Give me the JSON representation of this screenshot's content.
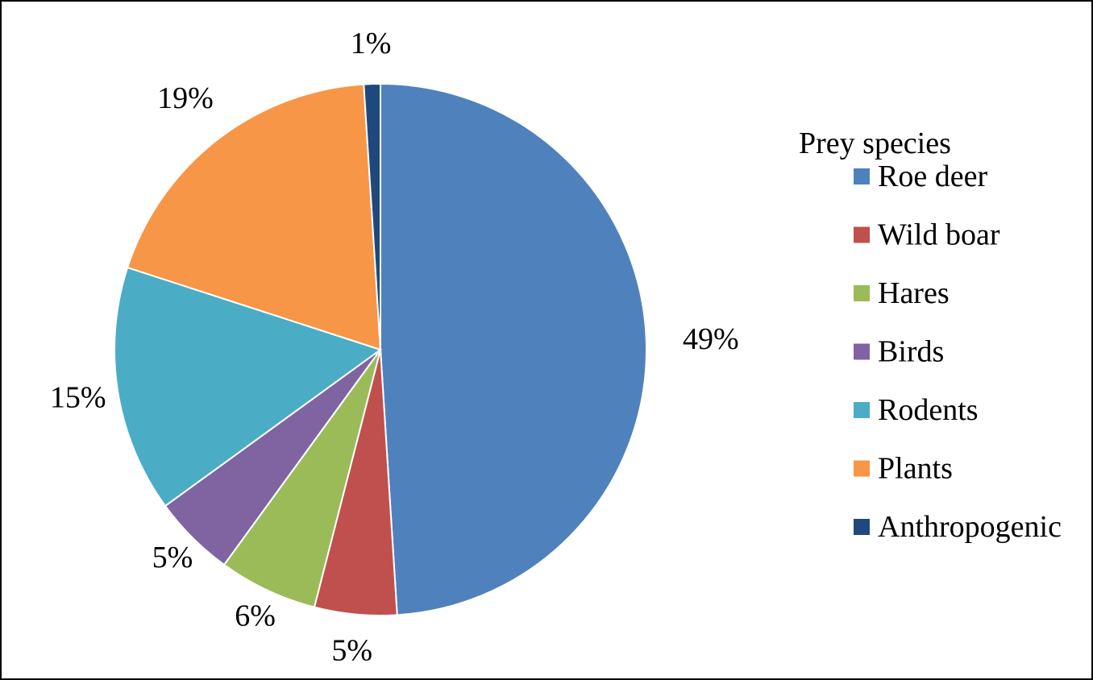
{
  "chart_data": {
    "type": "pie",
    "title": "",
    "legend": {
      "title": "Prey species",
      "position": "right"
    },
    "slices": [
      {
        "name": "Roe deer",
        "value": 49,
        "label": "49%",
        "color": "#4F81BD"
      },
      {
        "name": "Wild boar",
        "value": 5,
        "label": "5%",
        "color": "#C0504D"
      },
      {
        "name": "Hares",
        "value": 6,
        "label": "6%",
        "color": "#9BBB59"
      },
      {
        "name": "Birds",
        "value": 5,
        "label": "5%",
        "color": "#8064A2"
      },
      {
        "name": "Rodents",
        "value": 15,
        "label": "15%",
        "color": "#4BACC6"
      },
      {
        "name": "Plants",
        "value": 19,
        "label": "19%",
        "color": "#F79646"
      },
      {
        "name": "Anthropogenic",
        "value": 1,
        "label": "1%",
        "color": "#1F497D"
      }
    ]
  }
}
